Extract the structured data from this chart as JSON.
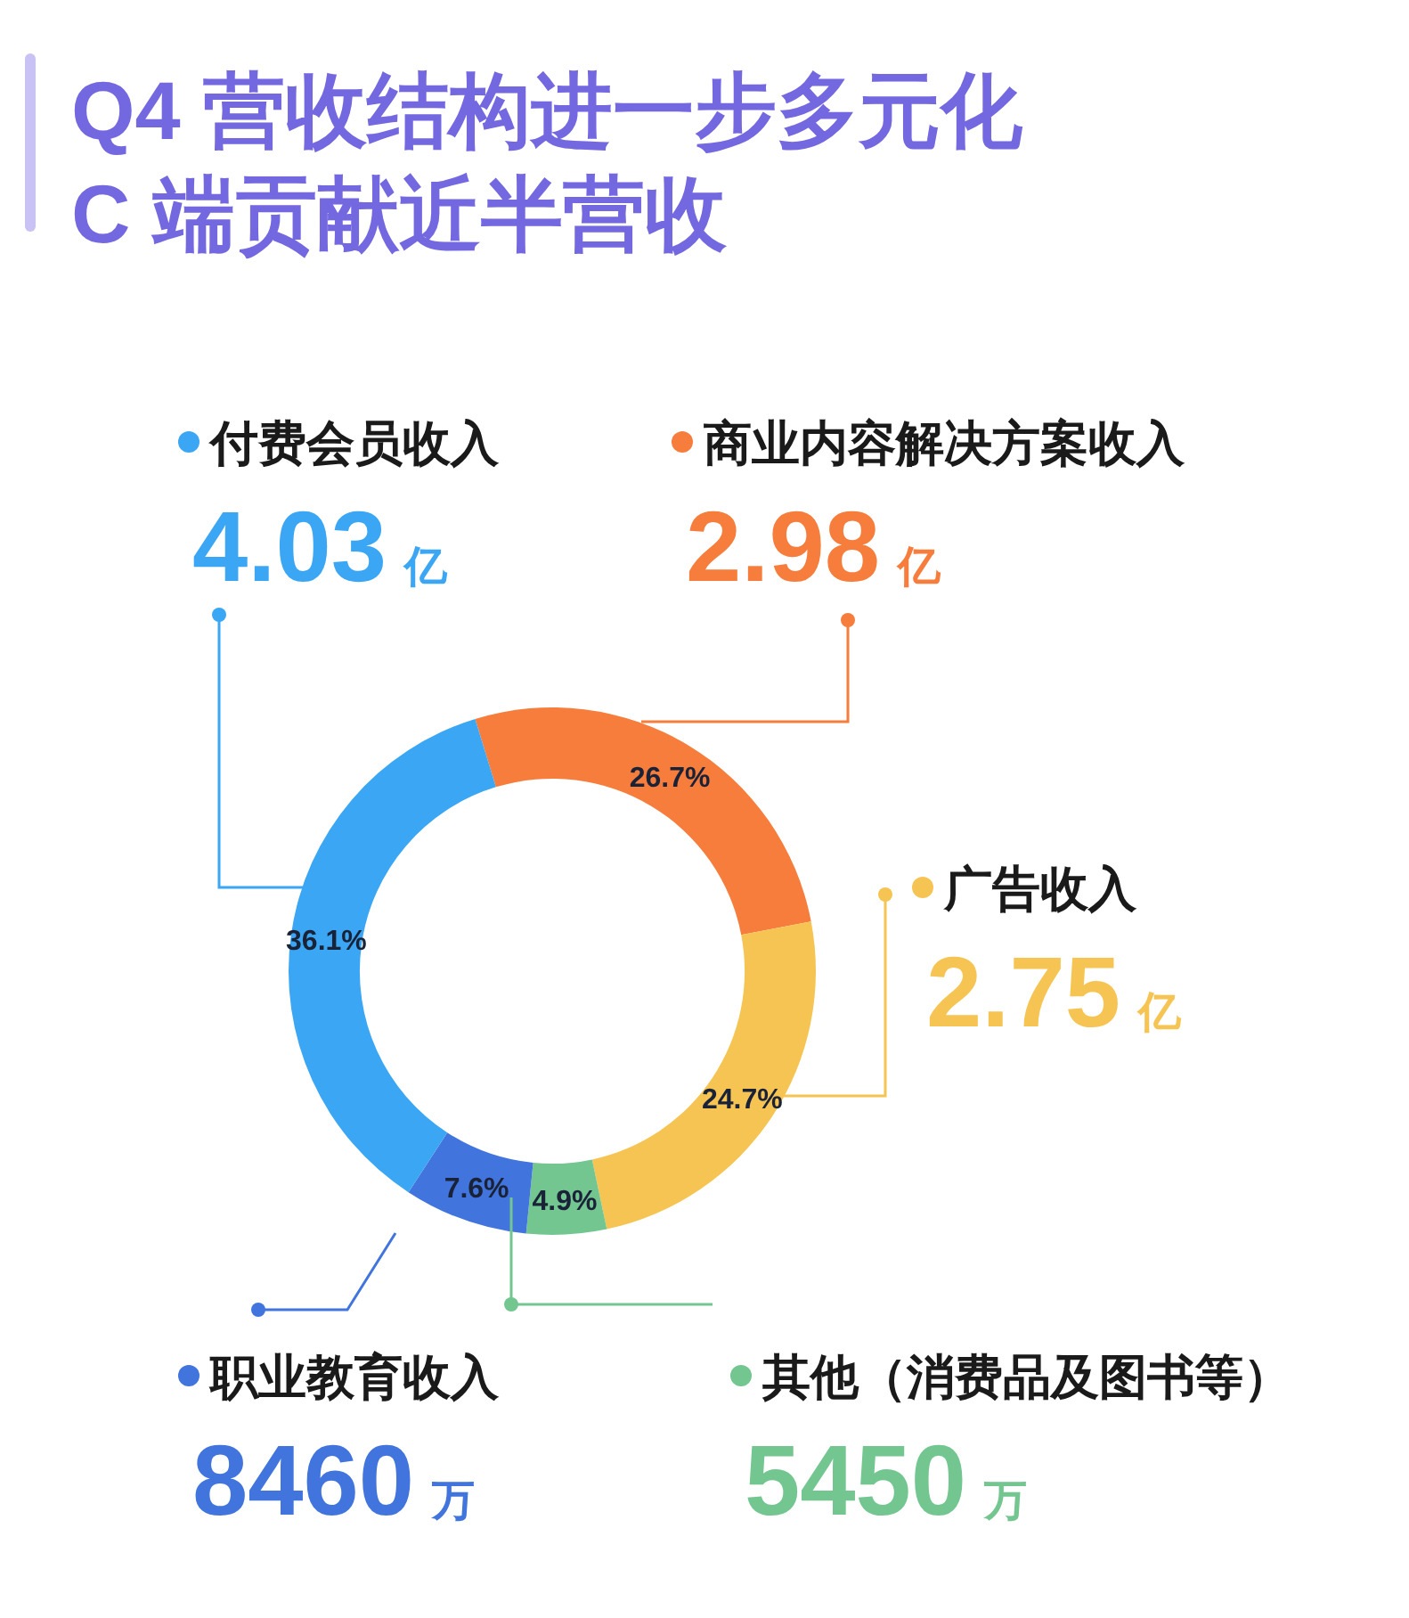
{
  "chart_data": {
    "type": "donut",
    "title": "Q4 营收结构进一步多元化\nC 端贡献近半营收",
    "categories": [
      "商业内容解决方案收入",
      "广告收入",
      "其他（消费品及图书等）",
      "职业教育收入",
      "付费会员收入"
    ],
    "values": [
      26.7,
      24.7,
      4.9,
      7.6,
      36.1
    ],
    "legend": "top",
    "colors": [
      "#f67d3c",
      "#f6c452",
      "#74c691",
      "#4174dc",
      "#3aa6f4"
    ],
    "value_labels": [
      "26.7%",
      "24.7%",
      "4.9%",
      "7.6%",
      "36.1%"
    ],
    "annotations": [
      "2.98 亿",
      "2.75 亿",
      "5450 万",
      "8460 万",
      "4.03 亿"
    ]
  }
}
